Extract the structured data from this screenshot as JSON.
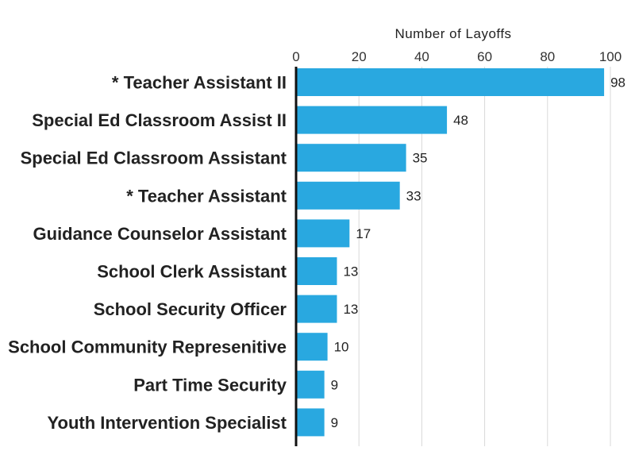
{
  "chart_data": {
    "type": "bar",
    "orientation": "horizontal",
    "xlabel": "Number of Layoffs",
    "xlim": [
      0,
      100
    ],
    "xticks": [
      0,
      20,
      40,
      60,
      80,
      100
    ],
    "grid": true,
    "bar_color": "#29a8e0",
    "categories": [
      "* Teacher Assistant II",
      "Special Ed Classroom Assist II",
      "Special Ed Classroom Assistant",
      "* Teacher Assistant",
      "Guidance Counselor Assistant",
      "School Clerk Assistant",
      "School Security Officer",
      "School Community Represenitive",
      "Part Time Security",
      "Youth Intervention Specialist"
    ],
    "values": [
      98,
      48,
      35,
      33,
      17,
      13,
      13,
      10,
      9,
      9
    ]
  }
}
